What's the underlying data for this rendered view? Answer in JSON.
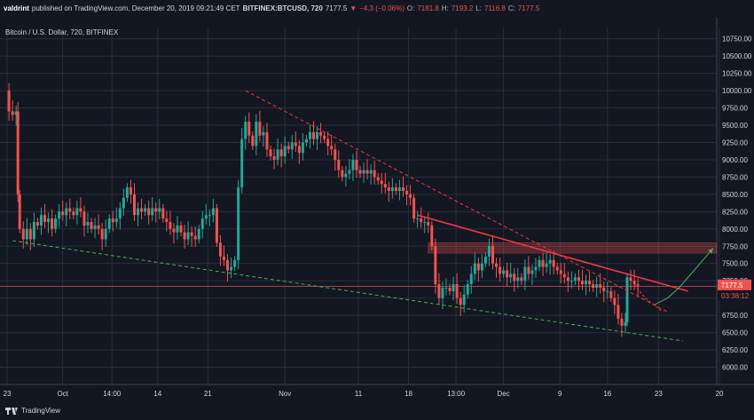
{
  "header": {
    "publisher": "valdrint",
    "published_text": "published on TradingView.com, December 20, 2019 09:21:49 CET",
    "symbol": "BITFINEX:BTCUSD, 720",
    "last": "7177.5",
    "change": "−4.3 (−0.06%)",
    "o_label": "O:",
    "o": "7181.8",
    "h_label": "H:",
    "h": "7193.2",
    "l_label": "L:",
    "l": "7116.8",
    "c_label": "C:",
    "c": "7177.5"
  },
  "footer": {
    "brand": "TradingView"
  },
  "colors": {
    "background": "#131722",
    "grid": "#2a2e39",
    "up": "#26a69a",
    "down": "#ef5350",
    "trend_red": "#f23645",
    "trend_green": "#4caf50",
    "zone": "#ef5350",
    "text": "#d1d4dc"
  },
  "chart_data": {
    "type": "candlestick",
    "title": "Bitcoin / U.S. Dollar, 720, BITFINEX",
    "ylim": [
      5750,
      10900
    ],
    "x_domain": [
      0,
      800
    ],
    "y_ticks": [
      6000,
      6250,
      6500,
      6750,
      7000,
      7250,
      7500,
      7750,
      8000,
      8250,
      8500,
      8750,
      9000,
      9250,
      9500,
      9750,
      10000,
      10250,
      10500,
      10750
    ],
    "x_ticks": [
      {
        "label": "23",
        "t": 8
      },
      {
        "label": "Oct",
        "t": 70
      },
      {
        "label": "14:00",
        "t": 125
      },
      {
        "label": "14",
        "t": 176
      },
      {
        "label": "21",
        "t": 232
      },
      {
        "label": "Nov",
        "t": 318
      },
      {
        "label": "11",
        "t": 400
      },
      {
        "label": "18",
        "t": 456
      },
      {
        "label": "13:00",
        "t": 509
      },
      {
        "label": "Dec",
        "t": 562
      },
      {
        "label": "9",
        "t": 625
      },
      {
        "label": "16",
        "t": 678
      },
      {
        "label": "23",
        "t": 735
      },
      {
        "label": "20",
        "t": 803
      }
    ],
    "last_price": {
      "value": 7177.5,
      "label": "7177.5",
      "countdown": "03:38:12"
    },
    "price_path": [
      [
        6,
        10000
      ],
      [
        10,
        9700
      ],
      [
        14,
        9650
      ],
      [
        18,
        9700
      ],
      [
        20,
        8500
      ],
      [
        22,
        8000
      ],
      [
        26,
        7850
      ],
      [
        30,
        8000
      ],
      [
        34,
        7850
      ],
      [
        38,
        8100
      ],
      [
        42,
        8050
      ],
      [
        46,
        8200
      ],
      [
        50,
        8100
      ],
      [
        54,
        8150
      ],
      [
        58,
        8000
      ],
      [
        62,
        8150
      ],
      [
        66,
        8250
      ],
      [
        70,
        8200
      ],
      [
        74,
        8300
      ],
      [
        78,
        8250
      ],
      [
        82,
        8200
      ],
      [
        86,
        8300
      ],
      [
        90,
        8250
      ],
      [
        94,
        8050
      ],
      [
        98,
        8100
      ],
      [
        102,
        8000
      ],
      [
        106,
        8050
      ],
      [
        110,
        8000
      ],
      [
        114,
        7850
      ],
      [
        118,
        8000
      ],
      [
        122,
        8150
      ],
      [
        126,
        8100
      ],
      [
        130,
        8150
      ],
      [
        134,
        8300
      ],
      [
        138,
        8450
      ],
      [
        142,
        8600
      ],
      [
        146,
        8500
      ],
      [
        150,
        8200
      ],
      [
        154,
        8300
      ],
      [
        158,
        8250
      ],
      [
        162,
        8300
      ],
      [
        166,
        8200
      ],
      [
        170,
        8300
      ],
      [
        174,
        8250
      ],
      [
        178,
        8300
      ],
      [
        182,
        8150
      ],
      [
        186,
        8100
      ],
      [
        190,
        8000
      ],
      [
        194,
        7950
      ],
      [
        198,
        8050
      ],
      [
        202,
        7950
      ],
      [
        206,
        7850
      ],
      [
        210,
        7950
      ],
      [
        214,
        7900
      ],
      [
        218,
        7850
      ],
      [
        222,
        8000
      ],
      [
        226,
        8150
      ],
      [
        230,
        8200
      ],
      [
        234,
        8200
      ],
      [
        238,
        8300
      ],
      [
        242,
        7800
      ],
      [
        246,
        7600
      ],
      [
        250,
        7550
      ],
      [
        254,
        7400
      ],
      [
        258,
        7450
      ],
      [
        262,
        7550
      ],
      [
        266,
        8600
      ],
      [
        270,
        9300
      ],
      [
        274,
        9550
      ],
      [
        278,
        9350
      ],
      [
        282,
        9200
      ],
      [
        286,
        9550
      ],
      [
        290,
        9350
      ],
      [
        294,
        9400
      ],
      [
        298,
        9150
      ],
      [
        302,
        9050
      ],
      [
        306,
        9000
      ],
      [
        310,
        9150
      ],
      [
        314,
        9050
      ],
      [
        318,
        9200
      ],
      [
        322,
        9150
      ],
      [
        326,
        9250
      ],
      [
        330,
        9200
      ],
      [
        334,
        9100
      ],
      [
        338,
        9250
      ],
      [
        342,
        9300
      ],
      [
        346,
        9400
      ],
      [
        350,
        9300
      ],
      [
        354,
        9400
      ],
      [
        358,
        9350
      ],
      [
        362,
        9300
      ],
      [
        366,
        9200
      ],
      [
        370,
        9150
      ],
      [
        374,
        9000
      ],
      [
        378,
        8850
      ],
      [
        382,
        8750
      ],
      [
        386,
        8800
      ],
      [
        390,
        8850
      ],
      [
        394,
        9000
      ],
      [
        398,
        8850
      ],
      [
        402,
        8800
      ],
      [
        406,
        8850
      ],
      [
        410,
        8800
      ],
      [
        414,
        8850
      ],
      [
        418,
        8750
      ],
      [
        422,
        8700
      ],
      [
        426,
        8650
      ],
      [
        430,
        8600
      ],
      [
        434,
        8550
      ],
      [
        438,
        8600
      ],
      [
        442,
        8550
      ],
      [
        446,
        8600
      ],
      [
        450,
        8550
      ],
      [
        454,
        8500
      ],
      [
        458,
        8450
      ],
      [
        462,
        8150
      ],
      [
        466,
        8150
      ],
      [
        470,
        8100
      ],
      [
        474,
        8100
      ],
      [
        478,
        8050
      ],
      [
        482,
        7750
      ],
      [
        486,
        7200
      ],
      [
        490,
        7000
      ],
      [
        494,
        7150
      ],
      [
        498,
        7150
      ],
      [
        502,
        7100
      ],
      [
        506,
        7200
      ],
      [
        510,
        7000
      ],
      [
        514,
        6900
      ],
      [
        518,
        7050
      ],
      [
        522,
        7200
      ],
      [
        526,
        7350
      ],
      [
        530,
        7500
      ],
      [
        534,
        7400
      ],
      [
        538,
        7500
      ],
      [
        542,
        7600
      ],
      [
        546,
        7750
      ],
      [
        550,
        7500
      ],
      [
        554,
        7450
      ],
      [
        558,
        7350
      ],
      [
        562,
        7400
      ],
      [
        566,
        7300
      ],
      [
        570,
        7350
      ],
      [
        574,
        7250
      ],
      [
        578,
        7300
      ],
      [
        582,
        7250
      ],
      [
        586,
        7450
      ],
      [
        590,
        7350
      ],
      [
        594,
        7400
      ],
      [
        598,
        7450
      ],
      [
        602,
        7550
      ],
      [
        606,
        7450
      ],
      [
        610,
        7500
      ],
      [
        614,
        7550
      ],
      [
        618,
        7450
      ],
      [
        622,
        7400
      ],
      [
        626,
        7350
      ],
      [
        630,
        7300
      ],
      [
        634,
        7250
      ],
      [
        638,
        7250
      ],
      [
        642,
        7300
      ],
      [
        646,
        7250
      ],
      [
        650,
        7200
      ],
      [
        654,
        7250
      ],
      [
        658,
        7200
      ],
      [
        662,
        7150
      ],
      [
        666,
        7200
      ],
      [
        670,
        7150
      ],
      [
        674,
        7100
      ],
      [
        678,
        7100
      ],
      [
        682,
        7000
      ],
      [
        686,
        6900
      ],
      [
        690,
        6700
      ],
      [
        694,
        6600
      ],
      [
        698,
        6650
      ],
      [
        700,
        7300
      ],
      [
        704,
        7250
      ],
      [
        708,
        7200
      ],
      [
        712,
        7180
      ]
    ],
    "annotations": {
      "red_dashed_trend": {
        "from": [
          274,
          10000
        ],
        "to": [
          745,
          6800
        ]
      },
      "red_solid_trend": {
        "from": [
          466,
          8200
        ],
        "to": [
          768,
          7100
        ]
      },
      "green_dashed_support": {
        "from": [
          14,
          7830
        ],
        "to": [
          762,
          6380
        ]
      },
      "resistance_zone": {
        "y_low": 7650,
        "y_high": 7800,
        "x_from": 478,
        "x_to": 800
      },
      "horizontal_level": {
        "y": 7170,
        "x_from": 0,
        "x_to": 800
      },
      "green_projection": [
        [
          730,
          6900
        ],
        [
          745,
          7000
        ],
        [
          758,
          7150
        ],
        [
          778,
          7450
        ],
        [
          796,
          7720
        ]
      ],
      "red_projection": [
        [
          708,
          7200
        ],
        [
          720,
          7000
        ],
        [
          738,
          6820
        ]
      ]
    }
  }
}
